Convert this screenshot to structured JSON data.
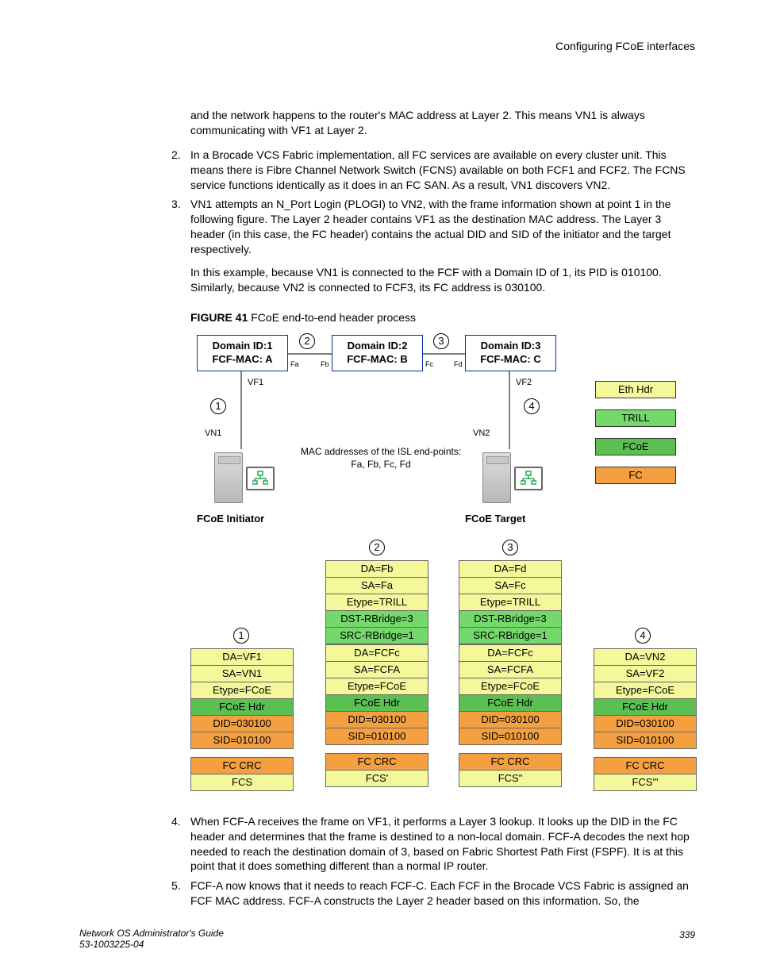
{
  "header": {
    "title": "Configuring FCoE interfaces"
  },
  "intro": "and the network happens to the router's MAC address at Layer 2. This means VN1 is always communicating with VF1 at Layer 2.",
  "items": {
    "i2": "In a Brocade VCS Fabric implementation, all FC services are available on every cluster unit. This means there is Fibre Channel Network Switch (FCNS) available on both FCF1 and FCF2. The FCNS service functions identically as it does in an FC SAN. As a result, VN1 discovers VN2.",
    "i3a": "VN1 attempts an N_Port Login (PLOGI) to VN2, with the frame information shown at point 1 in the following figure. The Layer 2 header contains VF1 as the destination MAC address. The Layer 3 header (in this case, the FC header) contains the actual DID and SID of the initiator and the target respectively.",
    "i3b": "In this example, because VN1 is connected to the FCF with a Domain ID of 1, its PID is 010100. Similarly, because VN2 is connected to FCF3, its FC address is 030100.",
    "i4": "When FCF-A receives the frame on VF1, it performs a Layer 3 lookup. It looks up the DID in the FC header and determines that the frame is destined to a non-local domain. FCF-A decodes the next hop needed to reach the destination domain of 3, based on Fabric Shortest Path First (FSPF). It is at this point that it does something different than a normal IP router.",
    "i5": "FCF-A now knows that it needs to reach FCF-C. Each FCF in the Brocade VCS Fabric is assigned an FCF MAC address. FCF-A constructs the Layer 2 header based on this information. So, the"
  },
  "figcap": {
    "bold": "FIGURE 41",
    "rest": " FCoE end-to-end header process"
  },
  "fig": {
    "domains": {
      "d1a": "Domain ID:1",
      "d1b": "FCF-MAC: A",
      "d2a": "Domain ID:2",
      "d2b": "FCF-MAC: B",
      "d3a": "Domain ID:3",
      "d3b": "FCF-MAC: C"
    },
    "ports": {
      "fa": "Fa",
      "fb": "Fb",
      "fc": "Fc",
      "fd": "Fd"
    },
    "vf": {
      "vf1": "VF1",
      "vf2": "VF2",
      "vn1": "VN1",
      "vn2": "VN2"
    },
    "endpoints": {
      "init": "FCoE Initiator",
      "target": "FCoE Target"
    },
    "isl1": "MAC addresses of the ISL end-points:",
    "isl2": "Fa, Fb, Fc, Fd",
    "legend": {
      "eth": "Eth Hdr",
      "trill": "TRILL",
      "fcoe": "FCoE",
      "fc": "FC"
    },
    "c": {
      "yellow": "#f4f89a",
      "green": "#74d96a",
      "darkgreen": "#5bbf52",
      "orange": "#f4a040"
    },
    "stacks": {
      "s1": {
        "head": "1",
        "rows": [
          {
            "t": "DA=VF1",
            "c": "yellow"
          },
          {
            "t": "SA=VN1",
            "c": "yellow"
          },
          {
            "t": "Etype=FCoE",
            "c": "yellow"
          },
          {
            "t": "FCoE Hdr",
            "c": "darkgreen"
          },
          {
            "t": "DID=030100",
            "c": "orange"
          },
          {
            "t": "SID=010100",
            "c": "orange"
          }
        ],
        "tail": [
          {
            "t": "FC CRC",
            "c": "orange"
          },
          {
            "t": "FCS",
            "c": "yellow"
          }
        ]
      },
      "s2": {
        "head": "2",
        "pre": [
          {
            "t": "DA=Fb",
            "c": "yellow"
          },
          {
            "t": "SA=Fa",
            "c": "yellow"
          },
          {
            "t": "Etype=TRILL",
            "c": "yellow"
          },
          {
            "t": "DST-RBridge=3",
            "c": "green"
          },
          {
            "t": "SRC-RBridge=1",
            "c": "green"
          }
        ],
        "rows": [
          {
            "t": "DA=FCFc",
            "c": "yellow"
          },
          {
            "t": "SA=FCFA",
            "c": "yellow"
          },
          {
            "t": "Etype=FCoE",
            "c": "yellow"
          },
          {
            "t": "FCoE Hdr",
            "c": "darkgreen"
          },
          {
            "t": "DID=030100",
            "c": "orange"
          },
          {
            "t": "SID=010100",
            "c": "orange"
          }
        ],
        "tail": [
          {
            "t": "FC CRC",
            "c": "orange"
          },
          {
            "t": "FCS'",
            "c": "yellow"
          }
        ]
      },
      "s3": {
        "head": "3",
        "pre": [
          {
            "t": "DA=Fd",
            "c": "yellow"
          },
          {
            "t": "SA=Fc",
            "c": "yellow"
          },
          {
            "t": "Etype=TRILL",
            "c": "yellow"
          },
          {
            "t": "DST-RBridge=3",
            "c": "green"
          },
          {
            "t": "SRC-RBridge=1",
            "c": "green"
          }
        ],
        "rows": [
          {
            "t": "DA=FCFc",
            "c": "yellow"
          },
          {
            "t": "SA=FCFA",
            "c": "yellow"
          },
          {
            "t": "Etype=FCoE",
            "c": "yellow"
          },
          {
            "t": "FCoE Hdr",
            "c": "darkgreen"
          },
          {
            "t": "DID=030100",
            "c": "orange"
          },
          {
            "t": "SID=010100",
            "c": "orange"
          }
        ],
        "tail": [
          {
            "t": "FC CRC",
            "c": "orange"
          },
          {
            "t": "FCS\"",
            "c": "yellow"
          }
        ]
      },
      "s4": {
        "head": "4",
        "rows": [
          {
            "t": "DA=VN2",
            "c": "yellow"
          },
          {
            "t": "SA=VF2",
            "c": "yellow"
          },
          {
            "t": "Etype=FCoE",
            "c": "yellow"
          },
          {
            "t": "FCoE Hdr",
            "c": "darkgreen"
          },
          {
            "t": "DID=030100",
            "c": "orange"
          },
          {
            "t": "SID=010100",
            "c": "orange"
          }
        ],
        "tail": [
          {
            "t": "FC CRC",
            "c": "orange"
          },
          {
            "t": "FCS'\"",
            "c": "yellow"
          }
        ]
      }
    }
  },
  "footer": {
    "l1": "Network OS Administrator's Guide",
    "l2": "53-1003225-04",
    "page": "339"
  }
}
